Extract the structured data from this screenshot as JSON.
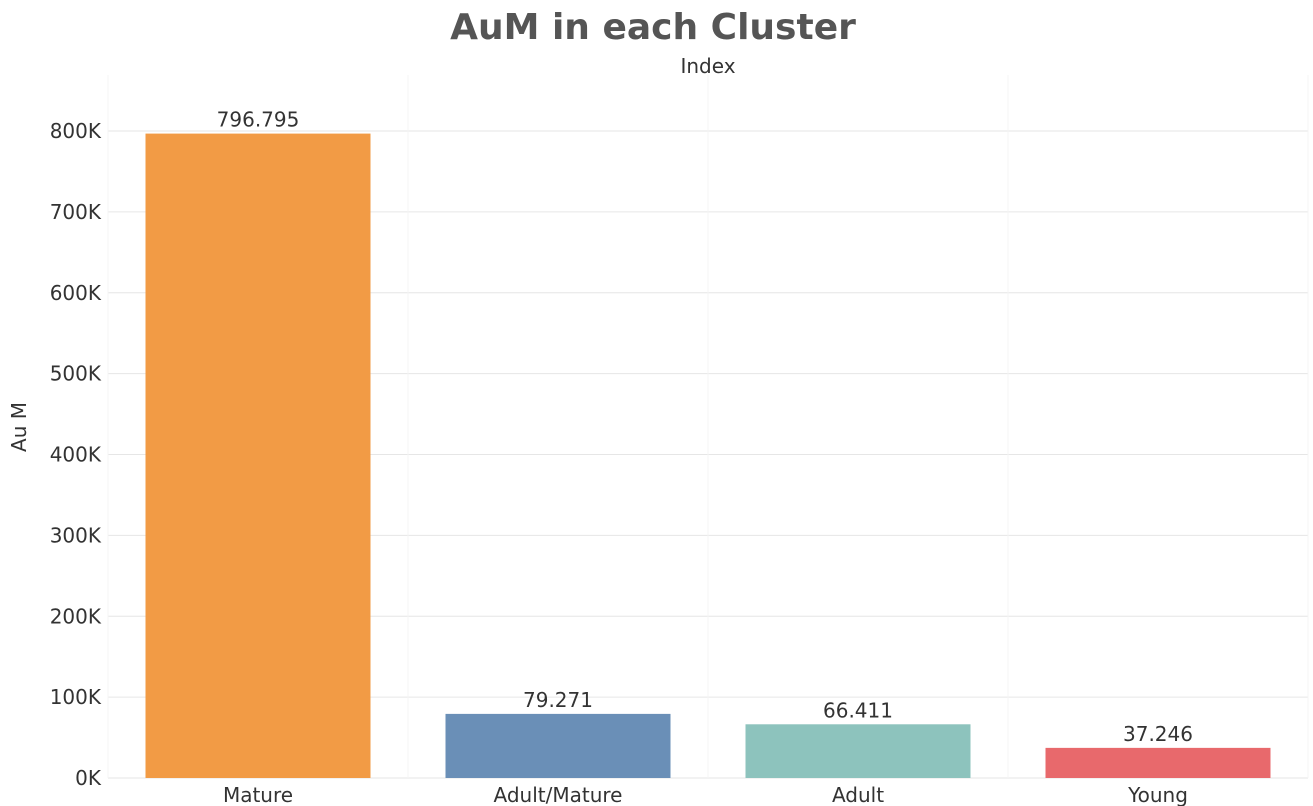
{
  "chart_data": {
    "type": "bar",
    "title": "AuM in each Cluster",
    "subtitle": "Index",
    "xlabel": "",
    "ylabel": "Au M",
    "categories": [
      "Mature",
      "Adult/Mature",
      "Adult",
      "Young"
    ],
    "values": [
      796795,
      79271,
      66411,
      37246
    ],
    "data_labels": [
      "796.795",
      "79.271",
      "66.411",
      "37.246"
    ],
    "colors": [
      "#f29b45",
      "#6a8fb7",
      "#8dc3bd",
      "#e8696c"
    ],
    "ylim": [
      0,
      860000
    ],
    "yticks": [
      0,
      100000,
      200000,
      300000,
      400000,
      500000,
      600000,
      700000,
      800000
    ],
    "ytick_labels": [
      "0K",
      "100K",
      "200K",
      "300K",
      "400K",
      "500K",
      "600K",
      "700K",
      "800K"
    ],
    "grid": true,
    "legend": "none"
  }
}
